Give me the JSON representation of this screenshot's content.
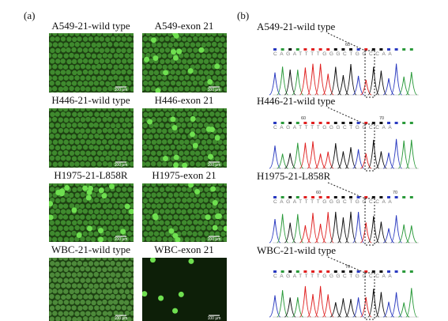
{
  "panel_a": {
    "label": "(a)",
    "scale_bar": "100 μm",
    "rows": [
      {
        "left": "A549-21-wild type",
        "right": "A549-exon 21"
      },
      {
        "left": "H446-21-wild type",
        "right": "H446-exon 21"
      },
      {
        "left": "H1975-21-L858R",
        "right": "H1975-exon 21"
      },
      {
        "left": "WBC-21-wild type",
        "right": "WBC-exon 21"
      }
    ]
  },
  "panel_b": {
    "label": "(b)",
    "rows": [
      {
        "title": "A549-21-wild type",
        "sequence": "CAGATTTTGGGCTGGCCAA",
        "positions": [
          "60"
        ]
      },
      {
        "title": "H446-21-wild type",
        "sequence": "CAGATTTTGGGCTGGCCAA",
        "positions": [
          "60",
          "70"
        ]
      },
      {
        "title": "H1975-21-L858R",
        "sequence": "CAGATTTTGGGCTGGCCAA",
        "positions": [
          "60",
          "70"
        ]
      },
      {
        "title": "WBC-21-wild type",
        "sequence": "CAGATTTTGGGCTGGCCAA",
        "positions": [
          "70"
        ]
      }
    ]
  }
}
